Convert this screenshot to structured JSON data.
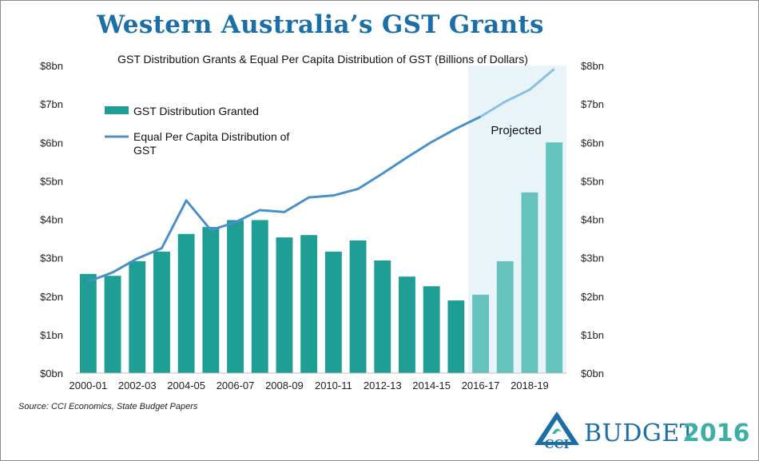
{
  "title": "Western Australia’s GST Grants",
  "source": "Source: CCI Economics, State Budget Papers",
  "logo": {
    "budget_text": "BUDGET",
    "year_text": "2016",
    "mark_text": "CCI"
  },
  "colors": {
    "bar_actual": "#1f9e96",
    "bar_projected": "#66c2bd",
    "line_actual": "#4a90c8",
    "line_projected": "#8cc0e0",
    "projected_shade": "#e8f4f8",
    "title": "#1b6fa8"
  },
  "chart_data": {
    "type": "bar",
    "title": "GST Distribution Grants & Equal Per Capita Distribution of GST (Billions of Dollars)",
    "categories": [
      "2000-01",
      "2001-02",
      "2002-03",
      "2003-04",
      "2004-05",
      "2005-06",
      "2006-07",
      "2007-08",
      "2008-09",
      "2009-10",
      "2010-11",
      "2011-12",
      "2012-13",
      "2013-14",
      "2014-15",
      "2015-16",
      "2016-17",
      "2017-18",
      "2018-19",
      "2019-20"
    ],
    "x_tick_labels": [
      "2000-01",
      "",
      "2002-03",
      "",
      "2004-05",
      "",
      "2006-07",
      "",
      "2008-09",
      "",
      "2010-11",
      "",
      "2012-13",
      "",
      "2014-15",
      "",
      "2016-17",
      "",
      "2018-19",
      ""
    ],
    "series": [
      {
        "name": "GST Distribution Granted",
        "type": "bar",
        "values": [
          2.58,
          2.53,
          2.91,
          3.16,
          3.62,
          3.8,
          3.98,
          3.98,
          3.53,
          3.59,
          3.16,
          3.45,
          2.93,
          2.51,
          2.26,
          1.89,
          2.04,
          2.91,
          4.7,
          6.0
        ]
      },
      {
        "name": "Equal Per Capita Distribution of GST",
        "type": "line",
        "values": [
          2.38,
          2.62,
          2.98,
          3.25,
          4.49,
          3.72,
          3.92,
          4.24,
          4.19,
          4.57,
          4.62,
          4.79,
          5.19,
          5.61,
          6.01,
          6.36,
          6.67,
          7.06,
          7.37,
          7.91
        ]
      }
    ],
    "y_axis_left": {
      "min": 0,
      "max": 8,
      "ticks": [
        "$0bn",
        "$1bn",
        "$2bn",
        "$3bn",
        "$4bn",
        "$5bn",
        "$6bn",
        "$7bn",
        "$8bn"
      ]
    },
    "y_axis_right": {
      "min": 0,
      "max": 8,
      "ticks": [
        "$0bn",
        "$1bn",
        "$2bn",
        "$3bn",
        "$4bn",
        "$5bn",
        "$6bn",
        "$7bn",
        "$8bn"
      ]
    },
    "projected_from_index": 16,
    "projected_label": "Projected",
    "legend": {
      "position": "top-left",
      "bar_label": "GST Distribution Granted",
      "line_label_1": "Equal Per Capita Distribution of",
      "line_label_2": "GST"
    },
    "grid": false
  }
}
